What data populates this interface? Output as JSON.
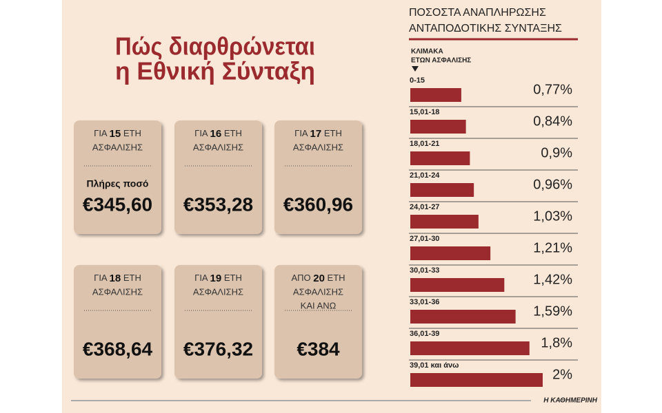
{
  "header": {
    "title_lines": [
      "Πώς διαρθρώνεται",
      "η Εθνική Σύνταξη"
    ]
  },
  "cards": [
    {
      "prefix": "ΓΙΑ",
      "years": "15",
      "suffix": "ΕΤΗ",
      "lines": [
        "ΑΣΦΑΛΙΣΗΣ"
      ],
      "note": "Πλήρες ποσό",
      "amount": "€345,60"
    },
    {
      "prefix": "ΓΙΑ",
      "years": "16",
      "suffix": "ΕΤΗ",
      "lines": [
        "ΑΣΦΑΛΙΣΗΣ"
      ],
      "amount": "€353,28"
    },
    {
      "prefix": "ΓΙΑ",
      "years": "17",
      "suffix": "ΕΤΗ",
      "lines": [
        "ΑΣΦΑΛΙΣΗΣ"
      ],
      "amount": "€360,96"
    },
    {
      "prefix": "ΓΙΑ",
      "years": "18",
      "suffix": "ΕΤΗ",
      "lines": [
        "ΑΣΦΑΛΙΣΗΣ"
      ],
      "amount": "€368,64"
    },
    {
      "prefix": "ΓΙΑ",
      "years": "19",
      "suffix": "ΕΤΗ",
      "lines": [
        "ΑΣΦΑΛΙΣΗΣ"
      ],
      "amount": "€376,32"
    },
    {
      "prefix": "ΑΠΟ",
      "years": "20",
      "suffix": "ΕΤΗ",
      "lines": [
        "ΑΣΦΑΛΙΣΗΣ",
        "ΚΑΙ ΑΝΩ"
      ],
      "amount": "€384"
    }
  ],
  "chart_data": {
    "type": "bar",
    "orientation": "horizontal",
    "title_lines": [
      "ΠΟΣΟΣΤΑ ΑΝΑΠΛΗΡΩΣΗΣ",
      "ΑΝΤΑΠΟΔΟΤΙΚΗΣ ΣΥΝΤΑΞΗΣ"
    ],
    "category_header": [
      "ΚΛΙΜΑΚΑ",
      "ΕΤΩΝ ΑΣΦΑΛΙΣΗΣ"
    ],
    "categories": [
      "0-15",
      "15,01-18",
      "18,01-21",
      "21,01-24",
      "24,01-27",
      "27,01-30",
      "30,01-33",
      "33,01-36",
      "36,01-39",
      "39,01 και άνω"
    ],
    "values": [
      0.77,
      0.84,
      0.9,
      0.96,
      1.03,
      1.21,
      1.42,
      1.59,
      1.8,
      2
    ],
    "value_labels": [
      "0,77%",
      "0,84%",
      "0,9%",
      "0,96%",
      "1,03%",
      "1,21%",
      "1,42%",
      "1,59%",
      "1,8%",
      "2%"
    ],
    "color": "#9b2a2e"
  },
  "footer": {
    "source": "Η ΚΑΘΗΜΕΡΙΝΗ"
  }
}
